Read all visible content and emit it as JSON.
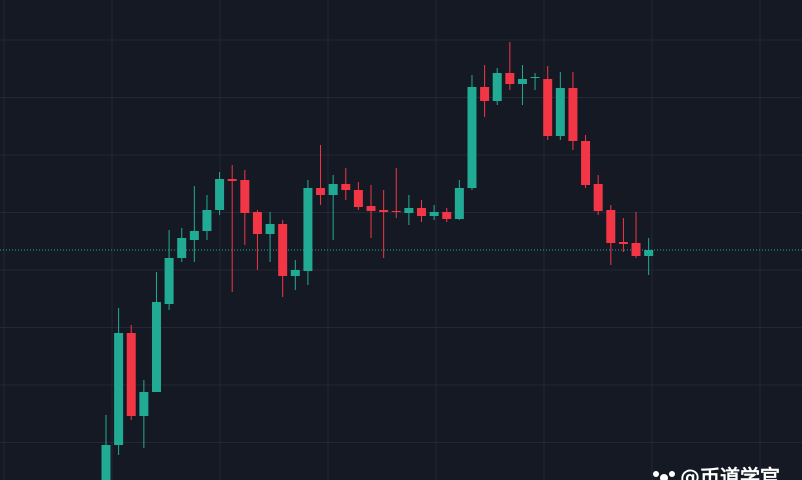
{
  "chart_data": {
    "type": "candlestick",
    "up_color": "#22ab94",
    "down_color": "#f23645",
    "background": "#151924",
    "grid_color": "#232836",
    "ylim": [
      0,
      480
    ],
    "grid": true,
    "price_line": 230,
    "price_line_color": "#22ab94",
    "watermark": "@币道学官",
    "open": [
      0,
      35,
      147,
      64,
      88,
      176,
      222,
      240,
      249,
      270,
      301,
      300,
      268,
      246,
      256,
      204,
      209,
      292,
      285,
      296,
      290,
      274,
      270,
      269,
      267,
      272,
      264,
      268,
      261,
      292,
      393,
      379,
      407,
      396,
      402,
      401,
      344,
      392,
      339,
      296,
      270,
      238,
      237,
      224
    ],
    "high": [
      65,
      172,
      155,
      100,
      208,
      250,
      252,
      294,
      285,
      308,
      315,
      310,
      270,
      268,
      260,
      220,
      300,
      335,
      305,
      312,
      298,
      295,
      290,
      312,
      285,
      280,
      275,
      272,
      300,
      405,
      415,
      412,
      438,
      415,
      407,
      414,
      408,
      408,
      345,
      305,
      275,
      262,
      268,
      242
    ],
    "low": [
      0,
      25,
      60,
      32,
      88,
      170,
      218,
      218,
      240,
      265,
      188,
      235,
      210,
      218,
      183,
      190,
      195,
      275,
      240,
      280,
      270,
      242,
      222,
      262,
      255,
      258,
      260,
      258,
      260,
      290,
      363,
      375,
      390,
      375,
      390,
      340,
      340,
      330,
      292,
      265,
      215,
      228,
      222,
      205
    ],
    "close": [
      35,
      147,
      64,
      88,
      178,
      222,
      242,
      249,
      270,
      301,
      299,
      267,
      246,
      256,
      204,
      210,
      292,
      285,
      296,
      290,
      273,
      269,
      268,
      268,
      272,
      264,
      268,
      261,
      292,
      393,
      379,
      407,
      396,
      401,
      403,
      344,
      392,
      339,
      295,
      269,
      237,
      236,
      224,
      230
    ]
  }
}
